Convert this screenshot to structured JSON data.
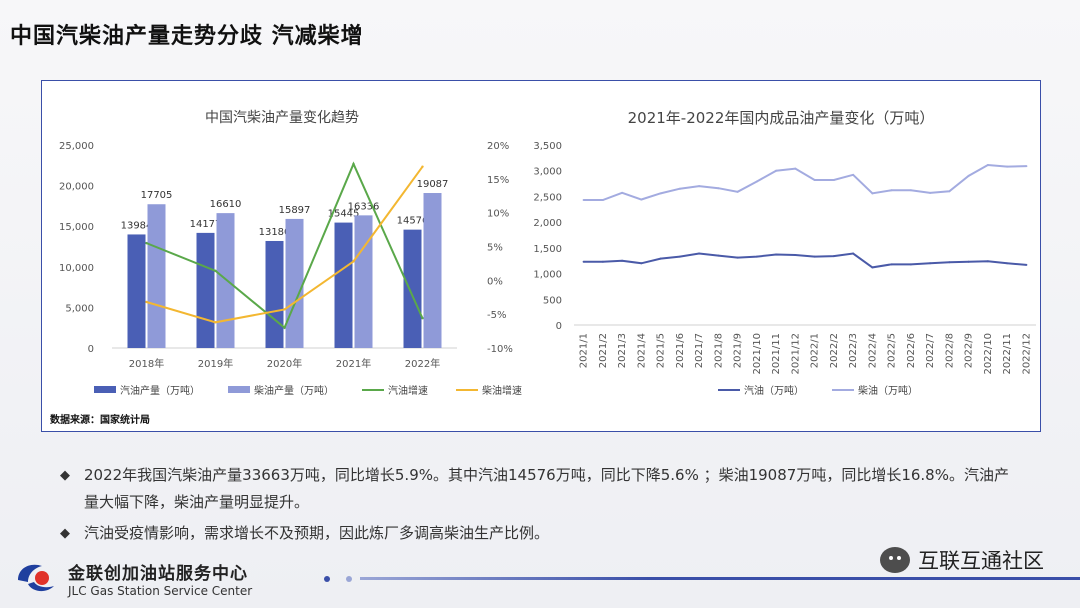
{
  "page": {
    "title": "中国汽柴油产量走势分歧 汽减柴增",
    "source": "数据来源：国家统计局"
  },
  "colors": {
    "gasoline_bar": "#4a5fb5",
    "diesel_bar": "#8f9ad8",
    "gasoline_growth": "#5aa84a",
    "diesel_growth": "#f3b731",
    "gasoline_line": "#4a5aa8",
    "diesel_line": "#a3abe0"
  },
  "legend1": {
    "gasoline_output": "汽油产量（万吨）",
    "diesel_output": "柴油产量（万吨）",
    "gasoline_growth": "汽油增速",
    "diesel_growth": "柴油增速"
  },
  "legend2": {
    "gasoline": "汽油（万吨）",
    "diesel": "柴油（万吨）"
  },
  "chart_data": [
    {
      "type": "bar",
      "title": "中国汽柴油产量变化趋势",
      "categories": [
        "2018年",
        "2019年",
        "2020年",
        "2021年",
        "2022年"
      ],
      "ylim": [
        0,
        25000
      ],
      "yticks": [
        "0",
        "5,000",
        "10,000",
        "15,000",
        "20,000",
        "25,000"
      ],
      "y2lim": [
        -10,
        20
      ],
      "y2ticks": [
        "-10%",
        "-5%",
        "0%",
        "5%",
        "10%",
        "15%",
        "20%"
      ],
      "series": [
        {
          "name": "汽油产量（万吨）",
          "kind": "bar",
          "axis": "left",
          "values": [
            13984,
            14177,
            13180,
            15445,
            14576
          ],
          "labels": [
            "13984",
            "14177",
            "13180",
            "15445",
            "14576"
          ]
        },
        {
          "name": "柴油产量（万吨）",
          "kind": "bar",
          "axis": "left",
          "values": [
            17705,
            16610,
            15897,
            16336,
            19087
          ],
          "labels": [
            "17705",
            "16610",
            "15897",
            "16336",
            "19087"
          ]
        },
        {
          "name": "汽油增速",
          "kind": "line",
          "axis": "right",
          "values": [
            5.5,
            1.4,
            -7.0,
            17.2,
            -5.6
          ]
        },
        {
          "name": "柴油增速",
          "kind": "line",
          "axis": "right",
          "values": [
            -3.2,
            -6.2,
            -4.3,
            2.8,
            16.8
          ]
        }
      ],
      "grid": false,
      "legend": "bottom"
    },
    {
      "type": "line",
      "title": "2021年-2022年国内成品油产量变化（万吨）",
      "x": [
        "2021/1",
        "2021/2",
        "2021/3",
        "2021/4",
        "2021/5",
        "2021/6",
        "2021/7",
        "2021/8",
        "2021/9",
        "2021/10",
        "2021/11",
        "2021/12",
        "2022/1",
        "2022/2",
        "2022/3",
        "2022/4",
        "2022/5",
        "2022/6",
        "2022/7",
        "2022/8",
        "2022/9",
        "2022/10",
        "2022/11",
        "2022/12"
      ],
      "ylim": [
        0,
        3500
      ],
      "yticks": [
        "0",
        "500",
        "1,000",
        "1,500",
        "2,000",
        "2,500",
        "3,000",
        "3,500"
      ],
      "series": [
        {
          "name": "汽油（万吨）",
          "values": [
            1230,
            1230,
            1250,
            1200,
            1290,
            1330,
            1390,
            1350,
            1310,
            1330,
            1370,
            1360,
            1330,
            1340,
            1390,
            1120,
            1180,
            1180,
            1200,
            1220,
            1230,
            1240,
            1200,
            1170
          ]
        },
        {
          "name": "柴油（万吨）",
          "values": [
            2430,
            2430,
            2570,
            2440,
            2560,
            2650,
            2700,
            2660,
            2590,
            2790,
            3000,
            3040,
            2820,
            2820,
            2920,
            2560,
            2620,
            2620,
            2570,
            2600,
            2900,
            3110,
            3080,
            3090
          ]
        }
      ],
      "grid": false,
      "legend": "bottom"
    }
  ],
  "bullets": [
    "2022年我国汽柴油产量33663万吨，同比增长5.9%。其中汽油14576万吨，同比下降5.6% ；柴油19087万吨，同比增长16.8%。汽油产量大幅下降，柴油产量明显提升。",
    "汽油受疫情影响，需求增长不及预期，因此炼厂多调高柴油生产比例。"
  ],
  "bullet_mark": "◆",
  "footer": {
    "company_cn": "金联创加油站服务中心",
    "company_en": "JLC Gas Station Service Center",
    "watermark": "互联互通社区"
  }
}
